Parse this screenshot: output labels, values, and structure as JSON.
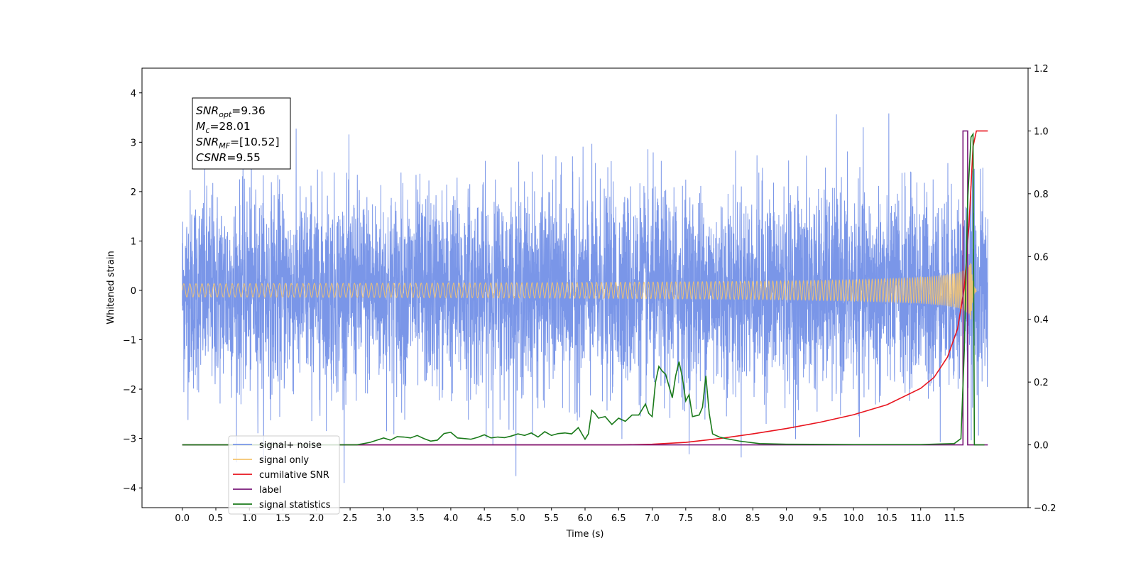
{
  "chart_data": {
    "type": "line",
    "xlabel": "Time (s)",
    "ylabel": "Whitened strain",
    "xlim": [
      -0.6,
      12.6
    ],
    "ylim": [
      -4.4,
      4.5
    ],
    "y2lim": [
      -0.2,
      1.2
    ],
    "x_ticks": [
      0.0,
      0.5,
      1.0,
      1.5,
      2.0,
      2.5,
      3.0,
      3.5,
      4.0,
      4.5,
      5.0,
      5.5,
      6.0,
      6.5,
      7.0,
      7.5,
      8.0,
      8.5,
      9.0,
      9.5,
      10.0,
      10.5,
      11.0,
      11.5
    ],
    "x_tick_labels": [
      "0.0",
      "0.5",
      "1.0",
      "1.5",
      "2.0",
      "2.5",
      "3.0",
      "3.5",
      "4.0",
      "4.5",
      "5.0",
      "5.5",
      "6.0",
      "6.5",
      "7.0",
      "7.5",
      "8.0",
      "8.5",
      "9.0",
      "9.5",
      "10.0",
      "10.5",
      "11.0",
      "11.5"
    ],
    "y_ticks": [
      -4,
      -3,
      -2,
      -1,
      0,
      1,
      2,
      3,
      4
    ],
    "y_tick_labels": [
      "−4",
      "−3",
      "−2",
      "−1",
      "0",
      "1",
      "2",
      "3",
      "4"
    ],
    "y2_ticks": [
      -0.2,
      0.0,
      0.2,
      0.4,
      0.6,
      0.8,
      1.0,
      1.2
    ],
    "y2_tick_labels": [
      "−0.2",
      "0.0",
      "0.2",
      "0.4",
      "0.6",
      "0.8",
      "1.0",
      "1.2"
    ],
    "grid": false,
    "legend_position": "lower-left",
    "annotation": [
      {
        "name": "SNR",
        "sub": "opt",
        "rest": "=9.36"
      },
      {
        "name": "M",
        "sub": "c",
        "rest": "=28.01"
      },
      {
        "name": "SNR",
        "sub": "MF",
        "rest": "=[10.52]"
      },
      {
        "name": "CSNR",
        "sub": "",
        "rest": "=9.55"
      }
    ],
    "series": [
      {
        "name": "signal+ noise",
        "color": "#7a96e8",
        "axis": "left",
        "description": "whitened noise, approx unit-variance Gaussian spanning 0.0 to 12.0 s",
        "x_range": [
          0.0,
          12.0
        ],
        "noise_std": 1.0
      },
      {
        "name": "signal only",
        "color": "#f5c46e",
        "axis": "left",
        "description": "chirp waveform, flat near 0 then growing amplitude up to ~0.6 at 11.75 s",
        "x_range": [
          0.0,
          11.83
        ],
        "peak_amplitude": 0.6,
        "merger_time": 11.75
      },
      {
        "name": "cumilative SNR",
        "color": "#e8141e",
        "axis": "right",
        "x": [
          0.0,
          6.5,
          7.0,
          7.5,
          8.0,
          8.5,
          9.0,
          9.5,
          10.0,
          10.5,
          11.0,
          11.2,
          11.4,
          11.55,
          11.65,
          11.72,
          11.78,
          11.83,
          12.0
        ],
        "y": [
          0.0,
          0.0,
          0.002,
          0.008,
          0.02,
          0.035,
          0.052,
          0.072,
          0.096,
          0.128,
          0.18,
          0.215,
          0.28,
          0.37,
          0.5,
          0.7,
          0.95,
          1.0,
          1.0
        ]
      },
      {
        "name": "label",
        "color": "#7a1a7a",
        "axis": "right",
        "x": [
          0.0,
          11.63,
          11.63,
          11.7,
          11.7,
          12.0
        ],
        "y": [
          0.0,
          0.0,
          1.0,
          1.0,
          0.0,
          0.0
        ]
      },
      {
        "name": "signal statistics",
        "color": "#1a7a1a",
        "axis": "right",
        "x": [
          0.0,
          2.6,
          2.8,
          3.0,
          3.1,
          3.2,
          3.3,
          3.4,
          3.5,
          3.6,
          3.7,
          3.8,
          3.9,
          4.0,
          4.1,
          4.2,
          4.3,
          4.4,
          4.5,
          4.6,
          4.7,
          4.8,
          4.9,
          5.0,
          5.1,
          5.2,
          5.3,
          5.4,
          5.5,
          5.6,
          5.7,
          5.8,
          5.9,
          6.0,
          6.05,
          6.1,
          6.15,
          6.2,
          6.3,
          6.4,
          6.5,
          6.6,
          6.7,
          6.8,
          6.9,
          6.95,
          7.0,
          7.05,
          7.1,
          7.15,
          7.2,
          7.3,
          7.35,
          7.4,
          7.45,
          7.5,
          7.55,
          7.6,
          7.7,
          7.75,
          7.8,
          7.85,
          7.9,
          8.0,
          8.1,
          8.3,
          8.6,
          9.0,
          10.0,
          11.0,
          11.3,
          11.5,
          11.6,
          11.65,
          11.7,
          11.75,
          11.78,
          11.8,
          11.85,
          11.95
        ],
        "y": [
          0.0,
          0.0,
          0.008,
          0.022,
          0.015,
          0.026,
          0.025,
          0.022,
          0.03,
          0.02,
          0.012,
          0.015,
          0.036,
          0.04,
          0.022,
          0.02,
          0.018,
          0.024,
          0.032,
          0.022,
          0.025,
          0.023,
          0.028,
          0.035,
          0.03,
          0.038,
          0.025,
          0.042,
          0.03,
          0.036,
          0.038,
          0.035,
          0.055,
          0.018,
          0.035,
          0.11,
          0.1,
          0.085,
          0.09,
          0.065,
          0.085,
          0.075,
          0.095,
          0.095,
          0.13,
          0.1,
          0.09,
          0.2,
          0.25,
          0.235,
          0.225,
          0.15,
          0.22,
          0.265,
          0.215,
          0.14,
          0.16,
          0.09,
          0.095,
          0.12,
          0.22,
          0.1,
          0.035,
          0.025,
          0.02,
          0.012,
          0.004,
          0.002,
          0.001,
          0.001,
          0.003,
          0.004,
          0.02,
          0.3,
          0.78,
          0.98,
          0.99,
          0.0,
          0.0,
          0.0
        ]
      }
    ]
  }
}
